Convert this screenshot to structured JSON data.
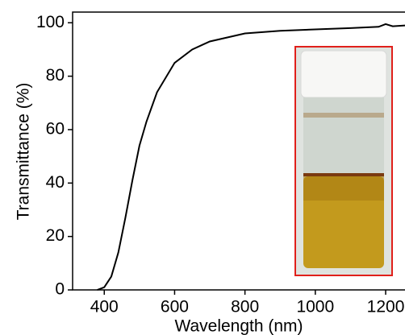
{
  "chart_data": {
    "type": "line",
    "x_label": "Wavelength (nm)",
    "y_label": "Transmittance (%)",
    "x": [
      380,
      400,
      420,
      440,
      460,
      480,
      500,
      520,
      550,
      600,
      650,
      700,
      800,
      900,
      1000,
      1100,
      1180,
      1200,
      1220,
      1255
    ],
    "values": [
      0,
      1,
      5,
      14,
      27,
      41,
      54,
      63,
      74,
      85,
      90,
      93,
      96,
      97,
      97.5,
      98,
      98.5,
      99.5,
      98.7,
      99
    ],
    "color": "#000000",
    "xlim": [
      310,
      1255
    ],
    "xticks": [
      400,
      600,
      800,
      1000,
      1200
    ],
    "ylim": [
      0,
      104
    ],
    "yticks": [
      0,
      20,
      40,
      60,
      80,
      100
    ]
  }
}
